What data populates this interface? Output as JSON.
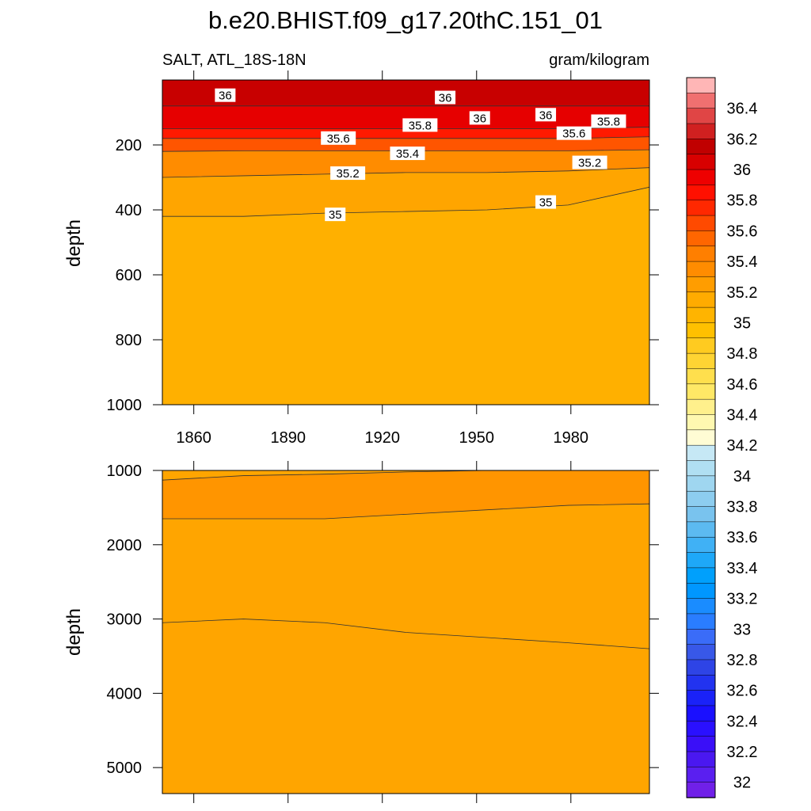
{
  "chart_data": {
    "type": "contour",
    "title": "b.e20.BHIST.f09_g17.20thC.151_01",
    "subtitle_left": "SALT, ATL_18S-18N",
    "subtitle_right": "gram/kilogram",
    "xlabel": "",
    "ylabel": "depth",
    "x_range": [
      1850,
      2005
    ],
    "x_ticks": [
      1860,
      1890,
      1920,
      1950,
      1980
    ],
    "panels": [
      {
        "name": "upper",
        "ylim": [
          0,
          1000
        ],
        "y_ticks": [
          200,
          400,
          600,
          800,
          1000
        ],
        "y_inverted": true,
        "contours": [
          {
            "level": 36.0,
            "fill": "#c80000",
            "depth": [
              80,
              80,
              80,
              80,
              80,
              80,
              80
            ]
          },
          {
            "level": 35.8,
            "fill": "#e60000",
            "depth": [
              150,
              150,
              150,
              150,
              150,
              150,
              145
            ]
          },
          {
            "level": 35.6,
            "fill": "#ff1a00",
            "depth": [
              180,
              180,
              180,
              180,
              180,
              180,
              175
            ]
          },
          {
            "level": 35.4,
            "fill": "#ff5500",
            "depth": [
              220,
              218,
              218,
              218,
              218,
              218,
              215
            ]
          },
          {
            "level": 35.2,
            "fill": "#ff8c00",
            "depth": [
              300,
              295,
              290,
              285,
              285,
              280,
              270
            ]
          },
          {
            "level": 35.0,
            "fill": "#ffa500",
            "depth": [
              420,
              420,
              410,
              405,
              400,
              385,
              330
            ]
          },
          {
            "level": 34.8,
            "fill": "#ffb000",
            "depth": [
              1000,
              1000,
              1000,
              1000,
              1000,
              1000,
              1000
            ]
          }
        ],
        "contour_labels": [
          {
            "text": "36",
            "x": 1870,
            "y": 48
          },
          {
            "text": "36",
            "x": 1940,
            "y": 55
          },
          {
            "text": "36",
            "x": 1951,
            "y": 118
          },
          {
            "text": "36",
            "x": 1972,
            "y": 108
          },
          {
            "text": "35.8",
            "x": 1932,
            "y": 140
          },
          {
            "text": "35.8",
            "x": 1992,
            "y": 128
          },
          {
            "text": "35.6",
            "x": 1906,
            "y": 180
          },
          {
            "text": "35.6",
            "x": 1981,
            "y": 165
          },
          {
            "text": "35.4",
            "x": 1928,
            "y": 227
          },
          {
            "text": "35.2",
            "x": 1909,
            "y": 288
          },
          {
            "text": "35.2",
            "x": 1986,
            "y": 255
          },
          {
            "text": "35",
            "x": 1905,
            "y": 415
          },
          {
            "text": "35",
            "x": 1972,
            "y": 377
          }
        ]
      },
      {
        "name": "lower",
        "ylim": [
          1000,
          5350
        ],
        "y_ticks": [
          1000,
          2000,
          3000,
          4000,
          5000
        ],
        "y_inverted": true,
        "contours": [
          {
            "level": 35.0,
            "fill": "#ffa500",
            "depth": [
              1130,
              1070,
              1050,
              1020,
              1000,
              1000,
              1000
            ]
          },
          {
            "level": 34.8,
            "fill": "#ff9500",
            "depth": [
              1650,
              1650,
              1650,
              1590,
              1530,
              1470,
              1450
            ]
          },
          {
            "level": 34.6,
            "fill": "#ffa500",
            "depth": [
              3050,
              3000,
              3050,
              3180,
              3250,
              3320,
              3400
            ]
          }
        ]
      }
    ],
    "colorbar": {
      "labels": [
        "36.4",
        "36.2",
        "36",
        "35.8",
        "35.6",
        "35.4",
        "35.2",
        "35",
        "34.8",
        "34.6",
        "34.4",
        "34.2",
        "34",
        "33.8",
        "33.6",
        "33.4",
        "33.2",
        "33",
        "32.8",
        "32.6",
        "32.4",
        "32.2",
        "32"
      ],
      "colors": [
        "#ffb6b6",
        "#f07070",
        "#e04545",
        "#d02020",
        "#c00000",
        "#d80000",
        "#ee0000",
        "#ff1000",
        "#ff2800",
        "#ff4a00",
        "#ff6600",
        "#ff7f00",
        "#ff8c00",
        "#ff9d00",
        "#ffab00",
        "#ffb400",
        "#ffc000",
        "#ffcb20",
        "#ffd433",
        "#ffdf4d",
        "#ffe866",
        "#fff08c",
        "#fff8b0",
        "#fffcd4",
        "#c6e8f5",
        "#b0dff2",
        "#9fd6f0",
        "#8dcdef",
        "#79c3ee",
        "#5cbaf1",
        "#40b1f5",
        "#1ea8f8",
        "#00a0fc",
        "#0097ff",
        "#1a8cff",
        "#2a7dff",
        "#3a6cf8",
        "#3858e8",
        "#2e44e6",
        "#2233f0",
        "#1a22f8",
        "#1a10ff",
        "#2a10ff",
        "#3a0ff8",
        "#4a18f0",
        "#5a1ff0",
        "#7020e8"
      ]
    }
  }
}
